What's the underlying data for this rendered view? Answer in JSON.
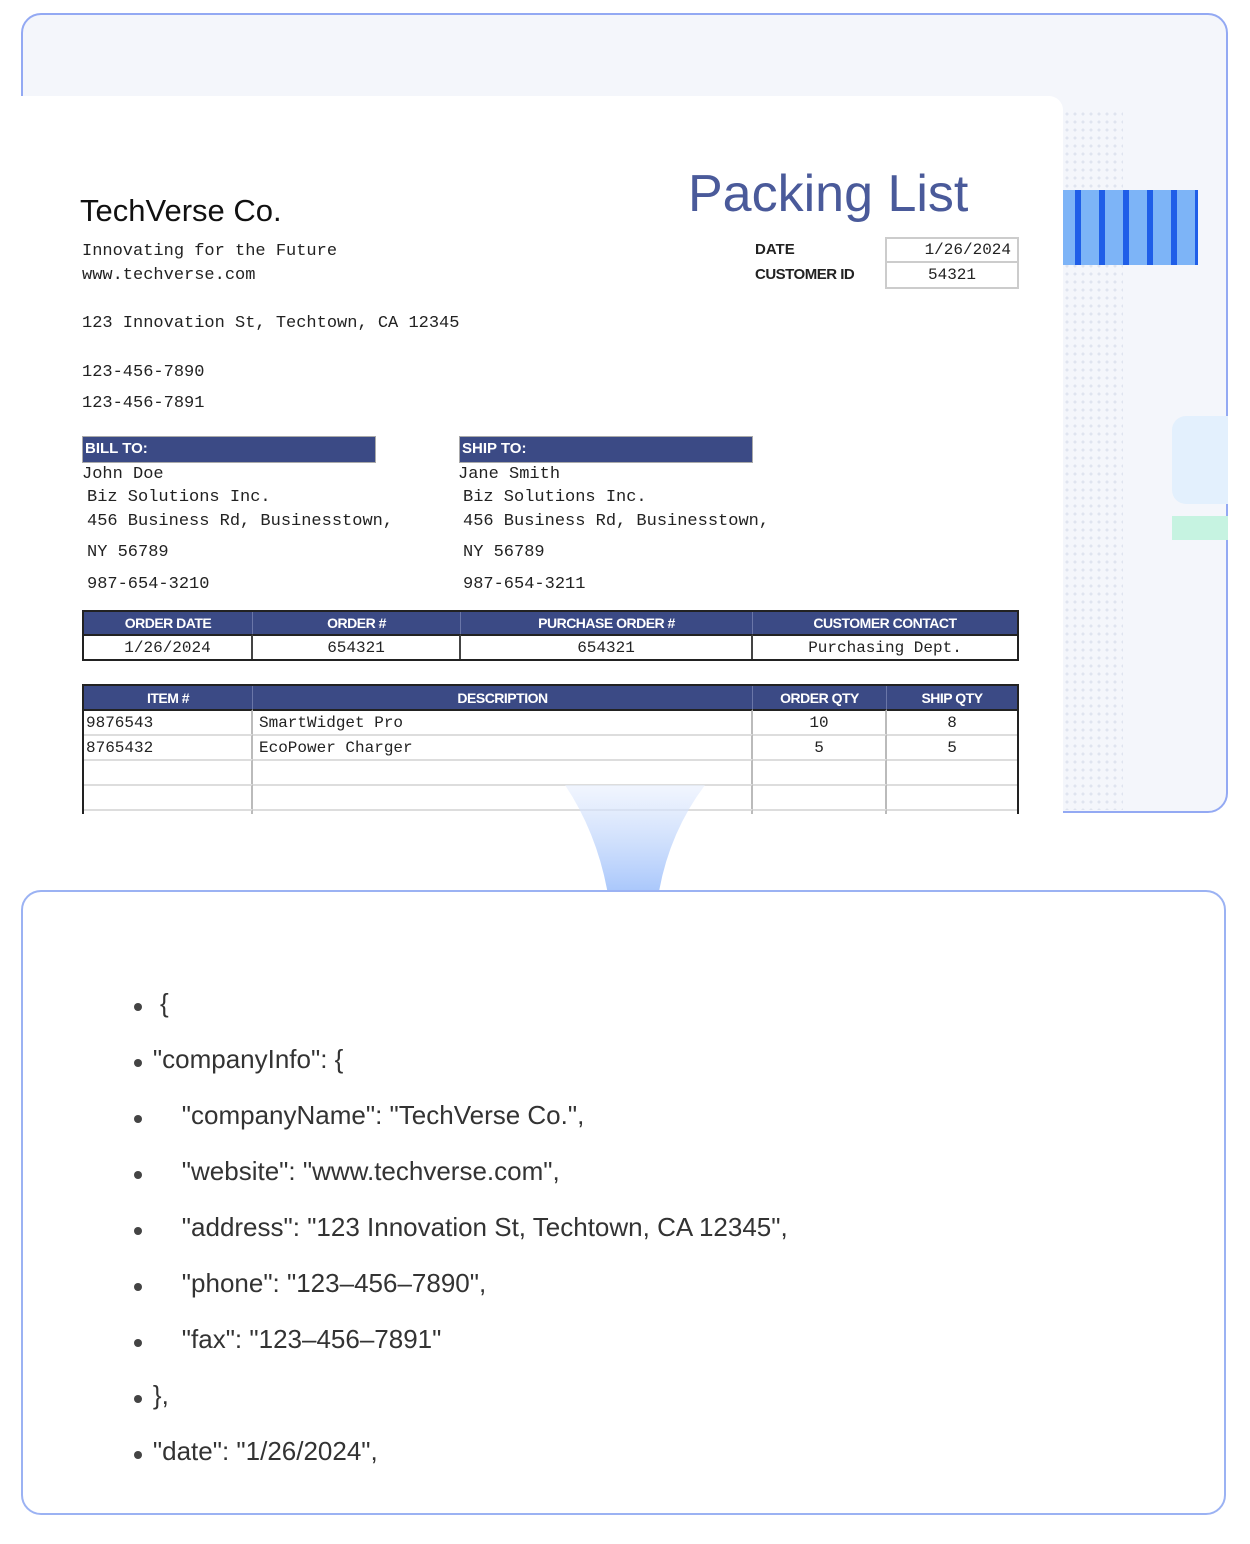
{
  "document": {
    "company_name": "TechVerse Co.",
    "tagline": "Innovating for the Future",
    "website": "www.techverse.com",
    "address": "123 Innovation St, Techtown, CA 12345",
    "phone": "123-456-7890",
    "fax": "123-456-7891",
    "title": "Packing List",
    "date_label": "DATE",
    "date_value": "1/26/2024",
    "customer_id_label": "CUSTOMER ID",
    "customer_id_value": "54321",
    "bill_to": {
      "label": "BILL TO:",
      "lines": [
        "John Doe",
        "Biz Solutions Inc.",
        "456 Business Rd, Businesstown,",
        "NY 56789",
        "987-654-3210"
      ]
    },
    "ship_to": {
      "label": "SHIP TO:",
      "lines": [
        "Jane Smith",
        "Biz Solutions Inc.",
        "456 Business Rd, Businesstown,",
        "NY 56789",
        "987-654-3211"
      ]
    },
    "order_table": {
      "headers": [
        "ORDER DATE",
        "ORDER #",
        "PURCHASE ORDER #",
        "CUSTOMER CONTACT"
      ],
      "values": [
        "1/26/2024",
        "654321",
        "654321",
        "Purchasing Dept."
      ]
    },
    "items_table": {
      "headers": [
        "ITEM #",
        "DESCRIPTION",
        "ORDER QTY",
        "SHIP QTY"
      ],
      "rows": [
        [
          "9876543",
          "SmartWidget Pro",
          "10",
          "8"
        ],
        [
          "8765432",
          "EcoPower Charger",
          "5",
          "5"
        ]
      ]
    },
    "header_color": "#3b4a85",
    "title_color": "#4a5a9a"
  },
  "json_output": {
    "lines": [
      "{",
      "    \"companyInfo\": {",
      "        \"companyName\": \"TechVerse Co.\",",
      "        \"website\": \"www.techverse.com\",",
      "        \"address\": \"123 Innovation St, Techtown, CA 12345\",",
      "        \"phone\": \"123–456–7890\",",
      "        \"fax\": \"123–456–7891\"",
      "    },",
      "    \"date\": \"1/26/2024\","
    ]
  },
  "arrow_icon": "arrow-down-icon"
}
